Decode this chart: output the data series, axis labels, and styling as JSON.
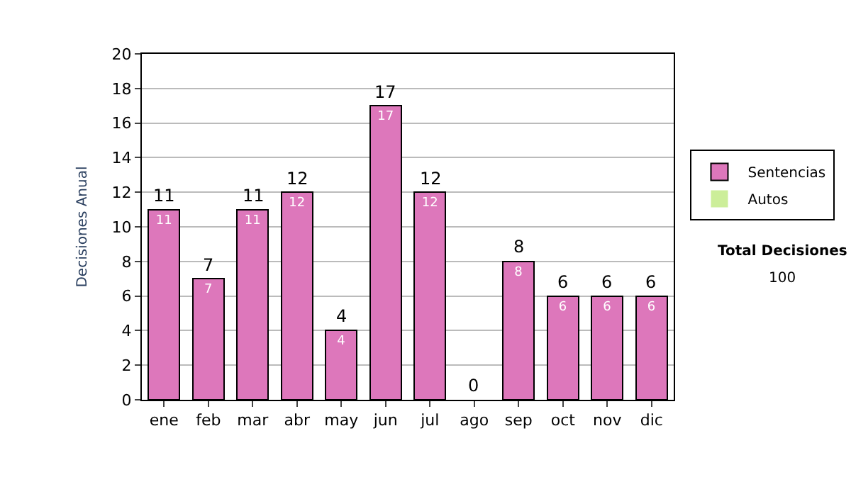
{
  "chart_data": {
    "type": "bar",
    "stacked": true,
    "ylabel": "Decisiones Anual",
    "categories": [
      "ene",
      "feb",
      "mar",
      "abr",
      "may",
      "jun",
      "jul",
      "ago",
      "sep",
      "oct",
      "nov",
      "dic"
    ],
    "series": [
      {
        "name": "Sentencias",
        "color": "#dd77bb",
        "values": [
          11,
          7,
          11,
          12,
          4,
          17,
          12,
          0,
          8,
          6,
          6,
          6
        ],
        "value_labels": [
          "11",
          "7",
          "11",
          "12",
          "4",
          "17",
          "12",
          null,
          "8",
          "6",
          "6",
          "6"
        ]
      },
      {
        "name": "Autos",
        "color": "#ccee99",
        "values": [
          0,
          0,
          0,
          0,
          0,
          0,
          0,
          0,
          0,
          0,
          0,
          0
        ]
      }
    ],
    "totals": [
      "11",
      "7",
      "11",
      "12",
      "4",
      "17",
      "12",
      "0",
      "8",
      "6",
      "6",
      "6"
    ],
    "ylim": [
      0,
      20
    ],
    "yticks": [
      0,
      2,
      4,
      6,
      8,
      10,
      12,
      14,
      16,
      18,
      20
    ],
    "grid": "y",
    "legend": "right",
    "annotations": [
      "Total Decisiones",
      "100"
    ]
  }
}
